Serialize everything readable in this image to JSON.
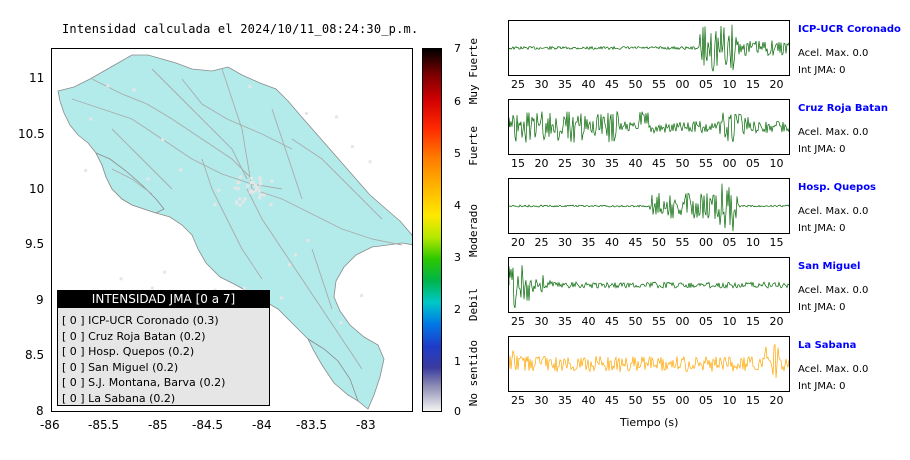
{
  "map": {
    "title": "Intensidad calculada el 2024/10/11_08:24:30_p.m.",
    "x_ticks": [
      "-86",
      "-85.5",
      "-85",
      "-84.5",
      "-84",
      "-83.5",
      "-83"
    ],
    "y_ticks": [
      "11",
      "10.5",
      "10",
      "9.5",
      "9",
      "8.5",
      "8"
    ],
    "land_color": "#b3ebeb",
    "road_color": "#aaaaaa"
  },
  "legend": {
    "title": "INTENSIDAD JMA [0 a 7]",
    "items": [
      "[ 0 ]  ICP-UCR Coronado (0.3)",
      "[ 0 ]  Cruz Roja Batan (0.2)",
      "[ 0 ]  Hosp. Quepos (0.2)",
      "[ 0 ]  San Miguel (0.2)",
      "[ 0 ]  S.J. Montana, Barva (0.2)",
      "[ 0 ]  La Sabana (0.2)"
    ]
  },
  "colorbar": {
    "ticks": [
      "7",
      "6",
      "5",
      "4",
      "3",
      "2",
      "1",
      "0"
    ],
    "labels": [
      "Muy Fuerte",
      "Fuerte",
      "Moderado",
      "Debil",
      "No sentido"
    ]
  },
  "stations": [
    {
      "name": "ICP-UCR Coronado",
      "accel": "Acel. Max. 0.0",
      "jma": "Int JMA: 0",
      "color": "#006600",
      "ticks": [
        "25",
        "30",
        "35",
        "40",
        "45",
        "50",
        "55",
        "00",
        "05",
        "10",
        "15",
        "20"
      ]
    },
    {
      "name": "Cruz Roja Batan",
      "accel": "Acel. Max. 0.0",
      "jma": "Int JMA: 0",
      "color": "#006600",
      "ticks": [
        "15",
        "20",
        "25",
        "30",
        "35",
        "40",
        "45",
        "50",
        "55",
        "00",
        "05",
        "10"
      ]
    },
    {
      "name": "Hosp. Quepos",
      "accel": "Acel. Max. 0.0",
      "jma": "Int JMA: 0",
      "color": "#006600",
      "ticks": [
        "20",
        "25",
        "30",
        "35",
        "40",
        "45",
        "50",
        "55",
        "00",
        "05",
        "10",
        "15"
      ]
    },
    {
      "name": "San Miguel",
      "accel": "Acel. Max. 0.0",
      "jma": "Int JMA: 0",
      "color": "#006600",
      "ticks": [
        "25",
        "30",
        "35",
        "40",
        "45",
        "50",
        "55",
        "00",
        "05",
        "10",
        "15",
        "20"
      ]
    },
    {
      "name": "La Sabana",
      "accel": "Acel. Max. 0.0",
      "jma": "Int JMA: 0",
      "color": "#ffa500",
      "ticks": [
        "25",
        "30",
        "35",
        "40",
        "45",
        "50",
        "55",
        "00",
        "05",
        "10",
        "15",
        "20"
      ]
    }
  ],
  "time_axis_label": "Tiempo (s)"
}
